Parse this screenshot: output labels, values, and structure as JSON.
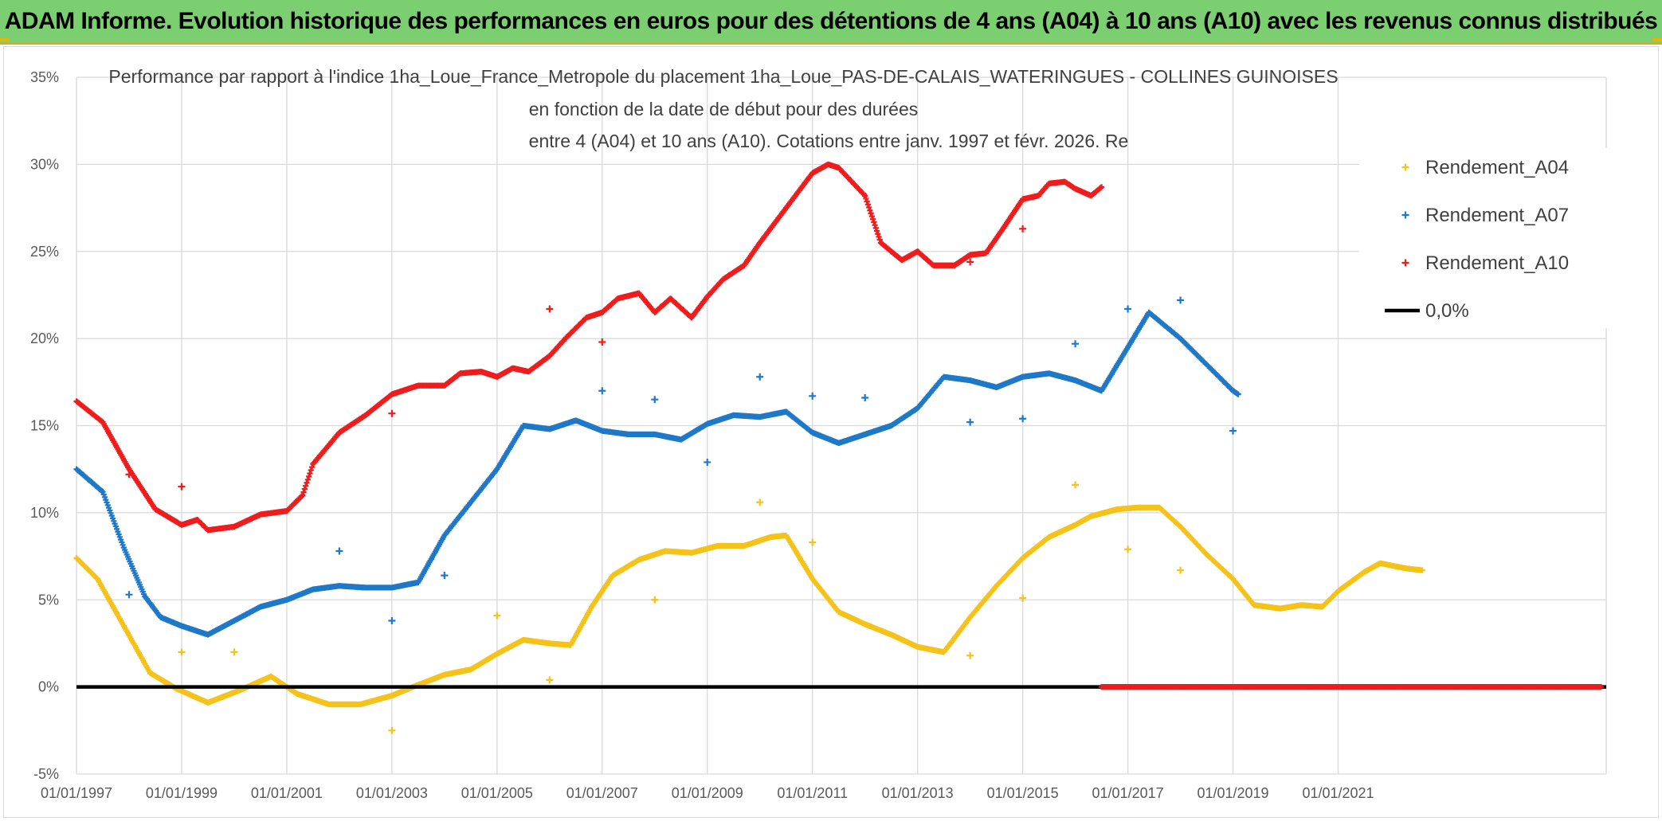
{
  "banner": {
    "title": "ADAM Informe. Evolution historique des performances en euros pour des détentions de 4 ans (A04) à 10 ans (A10) avec les revenus connus distribués"
  },
  "colors": {
    "banner_bg": "#7ccf70",
    "a04": "#f5c21b",
    "a07": "#1f78c8",
    "a10": "#ee1c1c",
    "zero": "#000000",
    "grid": "#d9d9d9"
  },
  "chart_data": {
    "type": "scatter",
    "title_lines": [
      "Performance par rapport à l'indice 1ha_Loue_France_Metropole  du placement 1ha_Loue_PAS-DE-CALAIS_WATERINGUES - COLLINES GUINOISES",
      "en fonction de la date de début pour des durées",
      "entre 4 (A04) et 10 ans (A10). Cotations entre janv. 1997 et févr. 2026. Re"
    ],
    "xlabel": "",
    "ylabel": "",
    "x_range": [
      1997.0,
      2026.1
    ],
    "ylim": [
      -5,
      35
    ],
    "y_ticks": [
      -5,
      0,
      5,
      10,
      15,
      20,
      25,
      30,
      35
    ],
    "y_tick_labels": [
      "-5%",
      "0%",
      "5%",
      "10%",
      "15%",
      "20%",
      "25%",
      "30%",
      "35%"
    ],
    "x_ticks": [
      1997,
      1999,
      2001,
      2003,
      2005,
      2007,
      2009,
      2011,
      2013,
      2015,
      2017,
      2019,
      2021
    ],
    "x_tick_labels": [
      "01/01/1997",
      "01/01/1999",
      "01/01/2001",
      "01/01/2003",
      "01/01/2005",
      "01/01/2007",
      "01/01/2009",
      "01/01/2011",
      "01/01/2013",
      "01/01/2015",
      "01/01/2017",
      "01/01/2019",
      "01/01/2021"
    ],
    "grid": true,
    "legend_position": "top-right",
    "series": [
      {
        "name": "Rendement_A04",
        "marker": "plus",
        "points": [
          [
            1997.0,
            7.4
          ],
          [
            1997.4,
            6.2
          ],
          [
            1997.9,
            3.5
          ],
          [
            1998.4,
            0.8
          ],
          [
            1998.9,
            -0.1
          ],
          [
            1999.5,
            -0.9
          ],
          [
            2000.1,
            -0.2
          ],
          [
            2000.7,
            0.6
          ],
          [
            2001.2,
            -0.4
          ],
          [
            2001.8,
            -1.0
          ],
          [
            2002.4,
            -1.0
          ],
          [
            2003.0,
            -0.5
          ],
          [
            2003.4,
            0.0
          ],
          [
            2004.0,
            0.7
          ],
          [
            2004.5,
            1.0
          ],
          [
            2005.0,
            1.9
          ],
          [
            2005.5,
            2.7
          ],
          [
            2006.0,
            2.5
          ],
          [
            2006.4,
            2.4
          ],
          [
            2006.8,
            4.6
          ],
          [
            2007.2,
            6.4
          ],
          [
            2007.7,
            7.3
          ],
          [
            2008.2,
            7.8
          ],
          [
            2008.7,
            7.7
          ],
          [
            2009.2,
            8.1
          ],
          [
            2009.7,
            8.1
          ],
          [
            2010.2,
            8.6
          ],
          [
            2010.5,
            8.7
          ],
          [
            2011.0,
            6.2
          ],
          [
            2011.5,
            4.3
          ],
          [
            2012.0,
            3.6
          ],
          [
            2012.5,
            3.0
          ],
          [
            2013.0,
            2.3
          ],
          [
            2013.5,
            2.0
          ],
          [
            2014.0,
            4.0
          ],
          [
            2014.5,
            5.8
          ],
          [
            2015.0,
            7.4
          ],
          [
            2015.5,
            8.6
          ],
          [
            2016.0,
            9.3
          ],
          [
            2016.3,
            9.8
          ],
          [
            2016.8,
            10.2
          ],
          [
            2017.2,
            10.3
          ],
          [
            2017.6,
            10.3
          ],
          [
            2018.0,
            9.2
          ],
          [
            2018.5,
            7.6
          ],
          [
            2019.0,
            6.2
          ],
          [
            2019.4,
            4.7
          ],
          [
            2019.9,
            4.5
          ],
          [
            2020.3,
            4.7
          ],
          [
            2020.7,
            4.6
          ],
          [
            2021.0,
            5.5
          ],
          [
            2021.5,
            6.6
          ],
          [
            2021.8,
            7.1
          ],
          [
            2022.3,
            6.8
          ],
          [
            2022.6,
            6.7
          ]
        ],
        "outliers": [
          [
            1999.0,
            2.0
          ],
          [
            2000.0,
            2.0
          ],
          [
            2003.0,
            -2.5
          ],
          [
            2005.0,
            4.1
          ],
          [
            2006.0,
            0.4
          ],
          [
            2008.0,
            5.0
          ],
          [
            2010.0,
            10.6
          ],
          [
            2011.0,
            8.3
          ],
          [
            2014.0,
            1.8
          ],
          [
            2015.0,
            5.1
          ],
          [
            2016.0,
            11.6
          ],
          [
            2017.0,
            7.9
          ],
          [
            2018.0,
            6.7
          ]
        ]
      },
      {
        "name": "Rendement_A07",
        "marker": "plus",
        "points": [
          [
            1997.0,
            12.5
          ],
          [
            1997.5,
            11.2
          ],
          [
            1997.9,
            8.0
          ],
          [
            1998.3,
            5.2
          ],
          [
            1998.6,
            4.0
          ],
          [
            1999.0,
            3.5
          ],
          [
            1999.5,
            3.0
          ],
          [
            2000.0,
            3.8
          ],
          [
            2000.5,
            4.6
          ],
          [
            2001.0,
            5.0
          ],
          [
            2001.5,
            5.6
          ],
          [
            2002.0,
            5.8
          ],
          [
            2002.5,
            5.7
          ],
          [
            2003.0,
            5.7
          ],
          [
            2003.5,
            6.0
          ],
          [
            2004.0,
            8.7
          ],
          [
            2004.5,
            10.6
          ],
          [
            2005.0,
            12.5
          ],
          [
            2005.5,
            15.0
          ],
          [
            2006.0,
            14.8
          ],
          [
            2006.5,
            15.3
          ],
          [
            2007.0,
            14.7
          ],
          [
            2007.5,
            14.5
          ],
          [
            2008.0,
            14.5
          ],
          [
            2008.5,
            14.2
          ],
          [
            2009.0,
            15.1
          ],
          [
            2009.5,
            15.6
          ],
          [
            2010.0,
            15.5
          ],
          [
            2010.5,
            15.8
          ],
          [
            2011.0,
            14.6
          ],
          [
            2011.5,
            14.0
          ],
          [
            2012.0,
            14.5
          ],
          [
            2012.5,
            15.0
          ],
          [
            2013.0,
            16.0
          ],
          [
            2013.5,
            17.8
          ],
          [
            2014.0,
            17.6
          ],
          [
            2014.5,
            17.2
          ],
          [
            2015.0,
            17.8
          ],
          [
            2015.5,
            18.0
          ],
          [
            2016.0,
            17.6
          ],
          [
            2016.5,
            17.0
          ],
          [
            2017.0,
            19.5
          ],
          [
            2017.4,
            21.5
          ],
          [
            2018.0,
            20.0
          ],
          [
            2018.5,
            18.5
          ],
          [
            2019.0,
            17.0
          ],
          [
            2019.1,
            16.8
          ]
        ],
        "outliers": [
          [
            1998.0,
            5.3
          ],
          [
            2002.0,
            7.8
          ],
          [
            2003.0,
            3.8
          ],
          [
            2004.0,
            6.4
          ],
          [
            2007.0,
            17.0
          ],
          [
            2008.0,
            16.5
          ],
          [
            2009.0,
            12.9
          ],
          [
            2010.0,
            17.8
          ],
          [
            2011.0,
            16.7
          ],
          [
            2012.0,
            16.6
          ],
          [
            2014.0,
            15.2
          ],
          [
            2015.0,
            15.4
          ],
          [
            2016.0,
            19.7
          ],
          [
            2017.0,
            21.7
          ],
          [
            2018.0,
            22.2
          ],
          [
            2019.0,
            14.7
          ]
        ]
      },
      {
        "name": "Rendement_A10",
        "marker": "plus",
        "points": [
          [
            1997.0,
            16.4
          ],
          [
            1997.5,
            15.2
          ],
          [
            1998.0,
            12.5
          ],
          [
            1998.5,
            10.2
          ],
          [
            1999.0,
            9.3
          ],
          [
            1999.3,
            9.6
          ],
          [
            1999.5,
            9.0
          ],
          [
            2000.0,
            9.2
          ],
          [
            2000.5,
            9.9
          ],
          [
            2001.0,
            10.1
          ],
          [
            2001.3,
            11.0
          ],
          [
            2001.5,
            12.8
          ],
          [
            2002.0,
            14.6
          ],
          [
            2002.5,
            15.6
          ],
          [
            2003.0,
            16.8
          ],
          [
            2003.5,
            17.3
          ],
          [
            2004.0,
            17.3
          ],
          [
            2004.3,
            18.0
          ],
          [
            2004.7,
            18.1
          ],
          [
            2005.0,
            17.8
          ],
          [
            2005.3,
            18.3
          ],
          [
            2005.6,
            18.1
          ],
          [
            2006.0,
            19.0
          ],
          [
            2006.3,
            20.0
          ],
          [
            2006.7,
            21.2
          ],
          [
            2007.0,
            21.5
          ],
          [
            2007.3,
            22.3
          ],
          [
            2007.7,
            22.6
          ],
          [
            2008.0,
            21.5
          ],
          [
            2008.3,
            22.3
          ],
          [
            2008.7,
            21.2
          ],
          [
            2009.0,
            22.4
          ],
          [
            2009.3,
            23.4
          ],
          [
            2009.7,
            24.2
          ],
          [
            2010.0,
            25.5
          ],
          [
            2010.5,
            27.5
          ],
          [
            2011.0,
            29.5
          ],
          [
            2011.3,
            30.0
          ],
          [
            2011.5,
            29.8
          ],
          [
            2012.0,
            28.2
          ],
          [
            2012.3,
            25.5
          ],
          [
            2012.7,
            24.5
          ],
          [
            2013.0,
            25.0
          ],
          [
            2013.3,
            24.2
          ],
          [
            2013.7,
            24.2
          ],
          [
            2014.0,
            24.8
          ],
          [
            2014.3,
            24.9
          ],
          [
            2014.6,
            26.2
          ],
          [
            2015.0,
            28.0
          ],
          [
            2015.3,
            28.2
          ],
          [
            2015.5,
            28.9
          ],
          [
            2015.8,
            29.0
          ],
          [
            2016.0,
            28.6
          ],
          [
            2016.3,
            28.2
          ],
          [
            2016.5,
            28.7
          ]
        ],
        "outliers": [
          [
            1998.0,
            12.2
          ],
          [
            1999.0,
            11.5
          ],
          [
            2003.0,
            15.7
          ],
          [
            2006.0,
            21.7
          ],
          [
            2007.0,
            19.8
          ],
          [
            2014.0,
            24.4
          ],
          [
            2015.0,
            26.3
          ]
        ],
        "zero_segment": [
          2016.5,
          2026.0
        ]
      }
    ],
    "reference_line": {
      "name": "0,0%",
      "y": 0
    }
  }
}
